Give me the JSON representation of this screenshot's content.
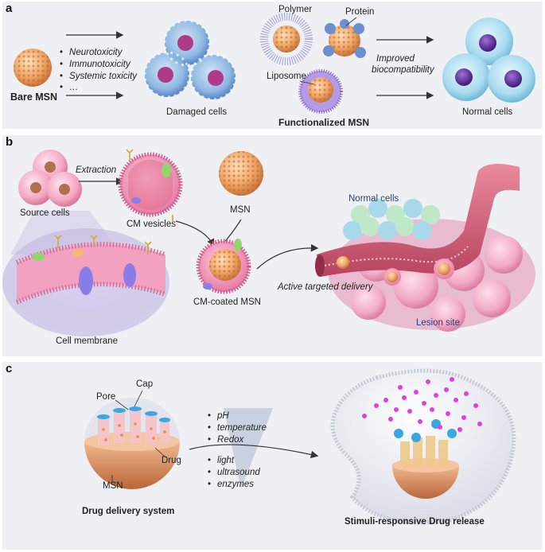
{
  "panel_a": {
    "label": "a",
    "bare_msn": "Bare MSN",
    "toxicities": [
      "Neurotoxicity",
      "Immunotoxicity",
      "Systemic toxicity",
      "…"
    ],
    "damaged_cells": "Damaged cells",
    "polymer": "Polymer",
    "protein": "Protein",
    "liposome": "Liposome",
    "functionalized_msn": "Functionalized  MSN",
    "improved_line1": "Improved",
    "improved_line2": "biocompatibility",
    "normal_cells": "Normal cells"
  },
  "panel_b": {
    "label": "b",
    "source_cells": "Source cells",
    "extraction": "Extraction",
    "cm_vesicles": "CM vesicles",
    "msn": "MSN",
    "cell_membrane": "Cell membrane",
    "cm_coated_msn": "CM-coated MSN",
    "active_targeted_delivery": "Active targeted delivery",
    "normal_cells": "Normal cells",
    "lesion_site": "Lesion site"
  },
  "panel_c": {
    "label": "c",
    "cap": "Cap",
    "pore": "Pore",
    "drug": "Drug",
    "msn": "MSN",
    "drug_delivery_system": "Drug delivery system",
    "stimuli_1": [
      "pH",
      "temperature",
      "Redox"
    ],
    "stimuli_2": [
      "light",
      "ultrasound",
      "enzymes"
    ],
    "stimuli_release": "Stimuli-responsive Drug release"
  },
  "colors": {
    "panel_bg": "#eef0f3",
    "msn_orange": "#f0a868",
    "membrane_pink": "#ee8fb0",
    "cell_blue": "#9fd3ea",
    "nucleus_purple": "#6a3aa0",
    "vessel_red": "#c8556a",
    "drug_magenta": "#e040e0",
    "cap_blue": "#3aa8e0"
  }
}
